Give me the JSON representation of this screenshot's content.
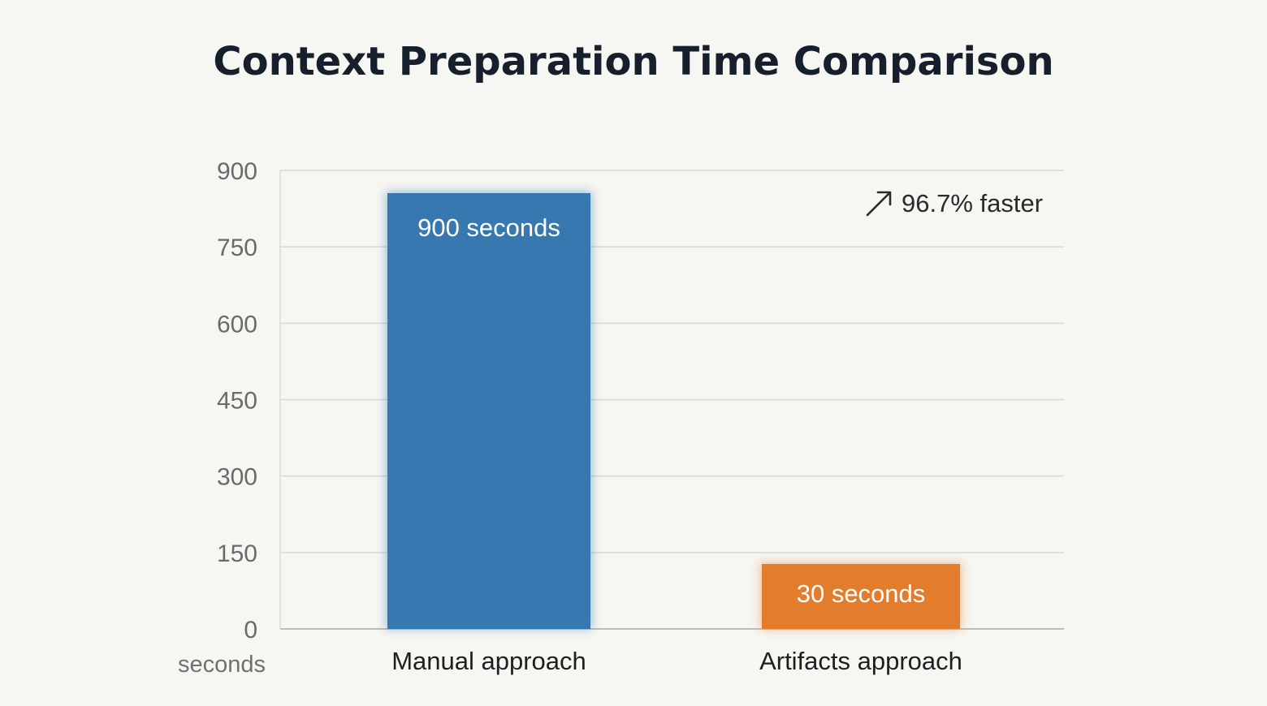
{
  "chart_data": {
    "type": "bar",
    "title": "Context Preparation Time Comparison",
    "categories": [
      "Manual approach",
      "Artifacts approach"
    ],
    "values": [
      900,
      30
    ],
    "bar_labels": [
      "900 seconds",
      "30 seconds"
    ],
    "colors": [
      "#3878b0",
      "#e47c2e"
    ],
    "ylabel": "seconds",
    "xlabel": "",
    "ylim": [
      0,
      900
    ],
    "yticks": [
      0,
      150,
      300,
      450,
      600,
      750,
      900
    ],
    "grid": true,
    "annotation": {
      "text": "96.7% faster",
      "icon": "arrow-up-right-icon"
    }
  }
}
